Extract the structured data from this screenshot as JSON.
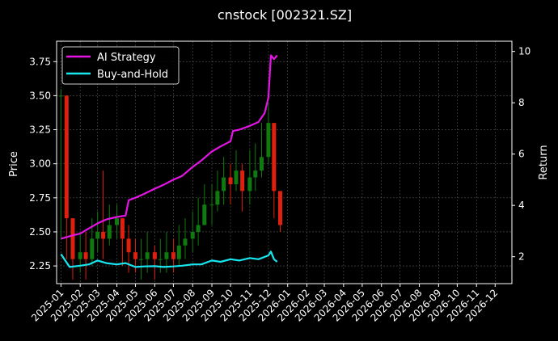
{
  "chart_data": {
    "type": "line",
    "title": "cnstock [002321.SZ]",
    "ylabel_left": "Price",
    "ylabel_right": "Return",
    "xlabel": "",
    "grid": true,
    "legend_position": "top-left",
    "x_range": [
      "2024-12-25",
      "2026-12-28"
    ],
    "ylim_left": [
      2.12,
      3.9
    ],
    "ylim_right": [
      0.95,
      10.4
    ],
    "x_ticks": [
      "2025-01",
      "2025-02",
      "2025-03",
      "2025-04",
      "2025-05",
      "2025-06",
      "2025-07",
      "2025-08",
      "2025-09",
      "2025-10",
      "2025-11",
      "2025-12",
      "2026-01",
      "2026-02",
      "2026-03",
      "2026-04",
      "2026-05",
      "2026-06",
      "2026-07",
      "2026-08",
      "2026-09",
      "2026-10",
      "2026-11",
      "2026-12"
    ],
    "y_ticks_left": [
      "2.25",
      "2.50",
      "2.75",
      "3.00",
      "3.25",
      "3.50",
      "3.75"
    ],
    "y_ticks_right": [
      "2",
      "4",
      "6",
      "8",
      "10"
    ],
    "colors": {
      "up": "#0f7a0f",
      "down": "#e0200e",
      "ai_strategy": "#e415e4",
      "buy_and_hold": "#17e6f0",
      "grid": "#555555",
      "axes": "#ffffff",
      "background": "#000000"
    },
    "price_series": {
      "name": "",
      "x": [
        "2025-01-01",
        "2025-01-10",
        "2025-01-20",
        "2025-02-01",
        "2025-02-10",
        "2025-02-20",
        "2025-03-01",
        "2025-03-10",
        "2025-03-20",
        "2025-04-01",
        "2025-04-10",
        "2025-04-20",
        "2025-05-01",
        "2025-05-10",
        "2025-05-20",
        "2025-06-01",
        "2025-06-10",
        "2025-06-20",
        "2025-07-01",
        "2025-07-10",
        "2025-07-20",
        "2025-08-01",
        "2025-08-10",
        "2025-08-20",
        "2025-09-01",
        "2025-09-10",
        "2025-09-20",
        "2025-10-01",
        "2025-10-10",
        "2025-10-20",
        "2025-11-01",
        "2025-11-10",
        "2025-11-20",
        "2025-12-01",
        "2025-12-10",
        "2025-12-20"
      ],
      "close": [
        3.5,
        2.6,
        2.3,
        2.35,
        2.3,
        2.45,
        2.5,
        2.45,
        2.55,
        2.6,
        2.45,
        2.35,
        2.3,
        2.3,
        2.35,
        2.3,
        2.3,
        2.35,
        2.3,
        2.4,
        2.45,
        2.5,
        2.55,
        2.7,
        2.7,
        2.8,
        2.9,
        2.85,
        2.95,
        2.8,
        2.9,
        2.95,
        3.05,
        3.3,
        2.8,
        2.55
      ],
      "high": [
        3.55,
        2.8,
        2.5,
        2.5,
        2.5,
        2.6,
        2.65,
        2.95,
        2.7,
        2.7,
        2.6,
        2.55,
        2.45,
        2.45,
        2.5,
        2.4,
        2.45,
        2.5,
        2.45,
        2.55,
        2.6,
        2.65,
        2.75,
        2.85,
        2.85,
        2.95,
        3.05,
        3.0,
        3.1,
        3.0,
        3.1,
        3.15,
        3.3,
        3.45,
        3.0,
        2.75
      ],
      "low": [
        2.45,
        2.3,
        2.15,
        2.2,
        2.15,
        2.25,
        2.35,
        2.3,
        2.4,
        2.45,
        2.25,
        2.2,
        2.2,
        2.15,
        2.2,
        2.15,
        2.2,
        2.2,
        2.2,
        2.25,
        2.3,
        2.35,
        2.4,
        2.55,
        2.55,
        2.65,
        2.7,
        2.7,
        2.8,
        2.65,
        2.7,
        2.8,
        2.9,
        3.0,
        2.6,
        2.5
      ]
    },
    "series": [
      {
        "name": "AI Strategy",
        "x": [
          "2025-01-01",
          "2025-01-15",
          "2025-02-01",
          "2025-02-15",
          "2025-03-01",
          "2025-03-15",
          "2025-04-01",
          "2025-04-15",
          "2025-04-20",
          "2025-05-01",
          "2025-05-15",
          "2025-06-01",
          "2025-06-15",
          "2025-07-01",
          "2025-07-15",
          "2025-08-01",
          "2025-08-15",
          "2025-09-01",
          "2025-09-15",
          "2025-10-01",
          "2025-10-05",
          "2025-10-15",
          "2025-11-01",
          "2025-11-15",
          "2025-11-25",
          "2025-12-01",
          "2025-12-05",
          "2025-12-10",
          "2025-12-15"
        ],
        "values": [
          2.7,
          2.8,
          2.9,
          3.1,
          3.3,
          3.45,
          3.55,
          3.6,
          4.2,
          4.3,
          4.45,
          4.65,
          4.8,
          5.0,
          5.15,
          5.5,
          5.75,
          6.1,
          6.3,
          6.5,
          6.9,
          6.95,
          7.1,
          7.25,
          7.6,
          8.2,
          9.85,
          9.7,
          9.85
        ]
      },
      {
        "name": "Buy-and-Hold",
        "x": [
          "2025-01-01",
          "2025-01-15",
          "2025-02-01",
          "2025-02-15",
          "2025-03-01",
          "2025-03-15",
          "2025-04-01",
          "2025-04-15",
          "2025-05-01",
          "2025-05-15",
          "2025-06-01",
          "2025-06-15",
          "2025-07-01",
          "2025-07-15",
          "2025-08-01",
          "2025-08-15",
          "2025-09-01",
          "2025-09-15",
          "2025-10-01",
          "2025-10-15",
          "2025-11-01",
          "2025-11-15",
          "2025-12-01",
          "2025-12-05",
          "2025-12-10",
          "2025-12-15"
        ],
        "values": [
          2.1,
          1.6,
          1.65,
          1.7,
          1.85,
          1.75,
          1.7,
          1.75,
          1.6,
          1.62,
          1.63,
          1.6,
          1.62,
          1.65,
          1.7,
          1.7,
          1.85,
          1.8,
          1.9,
          1.85,
          1.95,
          1.9,
          2.05,
          2.2,
          1.9,
          1.8
        ]
      }
    ]
  }
}
